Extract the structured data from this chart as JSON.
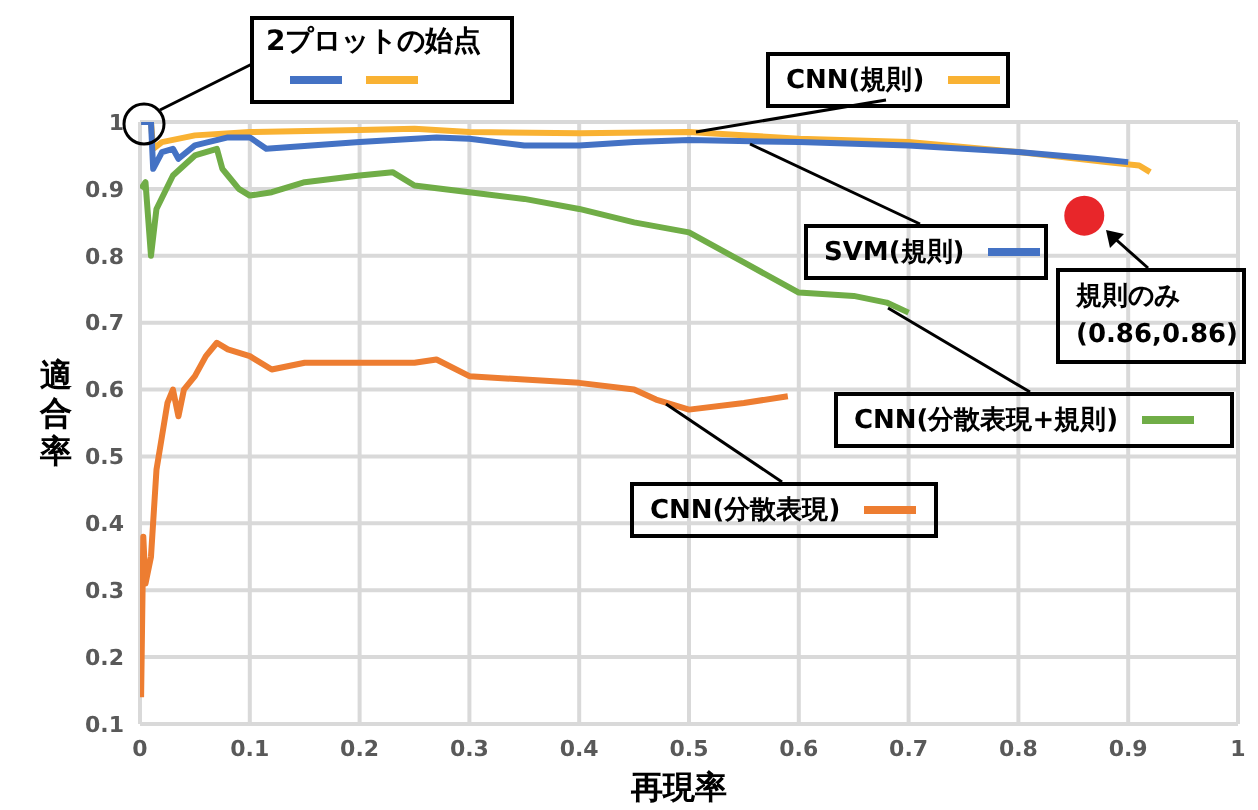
{
  "chart_data": {
    "type": "line",
    "xlabel": "再現率",
    "ylabel": "適合率",
    "xlim": [
      0,
      1
    ],
    "xticks": [
      0,
      0.1,
      0.2,
      0.3,
      0.4,
      0.5,
      0.6,
      0.7,
      0.8,
      0.9,
      1
    ],
    "ylim": [
      0.1,
      1
    ],
    "yticks": [
      0.1,
      0.2,
      0.3,
      0.4,
      0.5,
      0.6,
      0.7,
      0.8,
      0.9,
      1
    ],
    "grid": true,
    "marker": "none",
    "line_style": "solid",
    "legend": "right",
    "annotations": [
      "2プロットの始点",
      "規則のみ\n(0.86,0.86)"
    ],
    "series": [
      {
        "name": "CNN(規則)",
        "color": "#f9b233",
        "x": [
          0.001,
          0.01,
          0.012,
          0.02,
          0.05,
          0.1,
          0.2,
          0.25,
          0.3,
          0.4,
          0.5,
          0.6,
          0.7,
          0.8,
          0.88,
          0.91,
          0.92
        ],
        "values": [
          1,
          1,
          0.96,
          0.97,
          0.98,
          0.985,
          0.988,
          0.99,
          0.985,
          0.983,
          0.985,
          0.975,
          0.97,
          0.955,
          0.94,
          0.935,
          0.925
        ]
      },
      {
        "name": "SVM(規則)",
        "color": "#4472c4",
        "x": [
          0.001,
          0.01,
          0.012,
          0.02,
          0.03,
          0.035,
          0.05,
          0.08,
          0.1,
          0.115,
          0.2,
          0.27,
          0.3,
          0.35,
          0.4,
          0.45,
          0.5,
          0.6,
          0.7,
          0.8,
          0.87,
          0.9
        ],
        "values": [
          1,
          1,
          0.93,
          0.955,
          0.96,
          0.945,
          0.965,
          0.977,
          0.977,
          0.96,
          0.97,
          0.977,
          0.975,
          0.965,
          0.965,
          0.97,
          0.973,
          0.97,
          0.965,
          0.955,
          0.945,
          0.94
        ]
      },
      {
        "name": "CNN(分散表現+規則)",
        "color": "#70ad47",
        "x": [
          0.001,
          0.005,
          0.01,
          0.015,
          0.03,
          0.05,
          0.07,
          0.075,
          0.08,
          0.09,
          0.1,
          0.12,
          0.15,
          0.2,
          0.23,
          0.25,
          0.3,
          0.35,
          0.4,
          0.45,
          0.5,
          0.55,
          0.6,
          0.65,
          0.68,
          0.7
        ],
        "values": [
          0.9,
          0.91,
          0.8,
          0.87,
          0.92,
          0.95,
          0.96,
          0.93,
          0.92,
          0.9,
          0.89,
          0.895,
          0.91,
          0.92,
          0.925,
          0.905,
          0.895,
          0.885,
          0.87,
          0.85,
          0.835,
          0.79,
          0.745,
          0.74,
          0.73,
          0.715
        ]
      },
      {
        "name": "CNN(分散表現)",
        "color": "#ed7d31",
        "x": [
          0.001,
          0.003,
          0.005,
          0.01,
          0.015,
          0.02,
          0.025,
          0.03,
          0.035,
          0.04,
          0.05,
          0.06,
          0.07,
          0.08,
          0.1,
          0.12,
          0.15,
          0.2,
          0.25,
          0.27,
          0.3,
          0.35,
          0.4,
          0.45,
          0.47,
          0.5,
          0.55,
          0.59
        ],
        "values": [
          0.14,
          0.38,
          0.31,
          0.35,
          0.48,
          0.53,
          0.58,
          0.6,
          0.56,
          0.6,
          0.62,
          0.65,
          0.67,
          0.66,
          0.65,
          0.63,
          0.64,
          0.64,
          0.64,
          0.645,
          0.62,
          0.615,
          0.61,
          0.6,
          0.585,
          0.57,
          0.58,
          0.59
        ]
      },
      {
        "type": "scatter",
        "marker": "circle",
        "color": "#e8262a",
        "x": [
          0.86
        ],
        "values": [
          0.86
        ]
      }
    ]
  }
}
